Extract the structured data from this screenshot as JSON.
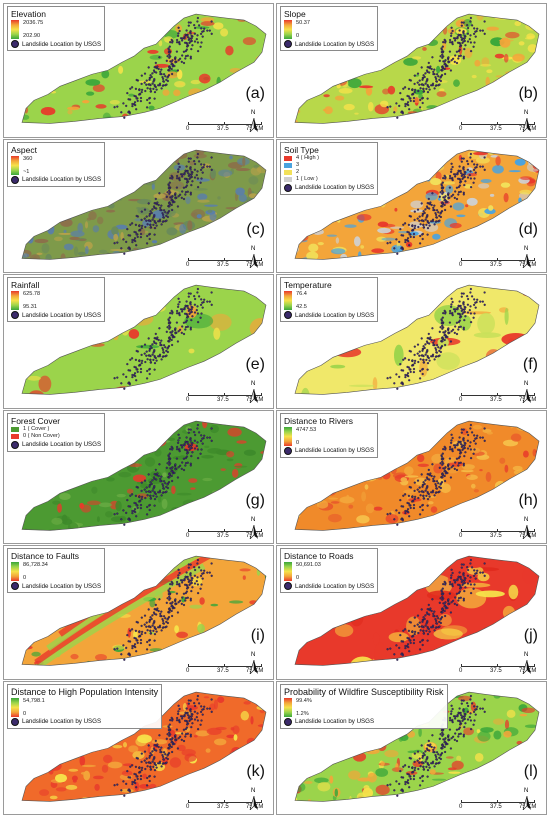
{
  "landslide_label": "Landslide Location by USGS",
  "scale": {
    "t0": "0",
    "t1": "37.5",
    "t2": "75 KM"
  },
  "north_label": "N",
  "colors": {
    "landslide": "#3b2a6b"
  },
  "panels": [
    {
      "title": "Elevation",
      "label": "(a)",
      "type": "ramp",
      "hi": "2036.75",
      "lo": "202.90",
      "ramp": [
        "#e8392b",
        "#f3a53a",
        "#f6e24a",
        "#9bd44b",
        "#3aa63a"
      ]
    },
    {
      "title": "Slope",
      "label": "(b)",
      "type": "ramp",
      "hi": "50.37",
      "lo": "0",
      "ramp": [
        "#e8392b",
        "#f3a53a",
        "#f6e24a",
        "#9bd44b",
        "#3aa63a"
      ]
    },
    {
      "title": "Aspect",
      "label": "(c)",
      "type": "ramp",
      "hi": "360",
      "lo": "~1",
      "ramp": [
        "#e8392b",
        "#f3a53a",
        "#f6e24a",
        "#9bd44b",
        "#3aa63a"
      ]
    },
    {
      "title": "Soil Type",
      "label": "(d)",
      "type": "classes",
      "classes": [
        {
          "text": "4 ( High )",
          "color": "#e8392b"
        },
        {
          "text": "3",
          "color": "#4aa3df"
        },
        {
          "text": "2",
          "color": "#f2e15a"
        },
        {
          "text": "1 ( Low )",
          "color": "#cfcfcf"
        }
      ]
    },
    {
      "title": "Rainfall",
      "label": "(e)",
      "type": "ramp",
      "hi": "625.78",
      "lo": "95.31",
      "ramp": [
        "#e8392b",
        "#f3a53a",
        "#f6e24a",
        "#9bd44b",
        "#3aa63a"
      ]
    },
    {
      "title": "Temperature",
      "label": "(f)",
      "type": "ramp",
      "hi": "76.4",
      "lo": "42.5",
      "ramp": [
        "#e8392b",
        "#f3a53a",
        "#f6e24a",
        "#9bd44b",
        "#3aa63a"
      ]
    },
    {
      "title": "Forest Cover",
      "label": "(g)",
      "type": "classes",
      "classes": [
        {
          "text": "1 ( Cover )",
          "color": "#4c9a32"
        },
        {
          "text": "0 ( Non Cover)",
          "color": "#e8392b"
        }
      ]
    },
    {
      "title": "Distance to Rivers",
      "label": "(h)",
      "type": "ramp",
      "hi": "4747.53",
      "lo": "0",
      "ramp": [
        "#3aa63a",
        "#9bd44b",
        "#f6e24a",
        "#f3a53a",
        "#e8392b"
      ]
    },
    {
      "title": "Distance to Faults",
      "label": "(i)",
      "type": "ramp",
      "hi": "86,728.34",
      "lo": "0",
      "ramp": [
        "#3aa63a",
        "#9bd44b",
        "#f6e24a",
        "#f3a53a",
        "#e8392b"
      ]
    },
    {
      "title": "Distance to Roads",
      "label": "(j)",
      "type": "ramp",
      "hi": "50,691.03",
      "lo": "0",
      "ramp": [
        "#3aa63a",
        "#9bd44b",
        "#f6e24a",
        "#f3a53a",
        "#e8392b"
      ]
    },
    {
      "title": "Distance to High Population Intensity",
      "label": "(k)",
      "type": "ramp",
      "big": true,
      "hi": "54,798.1",
      "lo": "0",
      "ramp": [
        "#3aa63a",
        "#9bd44b",
        "#f6e24a",
        "#f3a53a",
        "#e8392b"
      ]
    },
    {
      "title": "Probability of Wildfire Susceptibility Risk",
      "label": "(l)",
      "type": "ramp",
      "big": true,
      "hi": "99.4%",
      "lo": "1.2%",
      "ramp": [
        "#e8392b",
        "#f3a53a",
        "#f6e24a",
        "#9bd44b",
        "#3aa63a"
      ]
    }
  ]
}
